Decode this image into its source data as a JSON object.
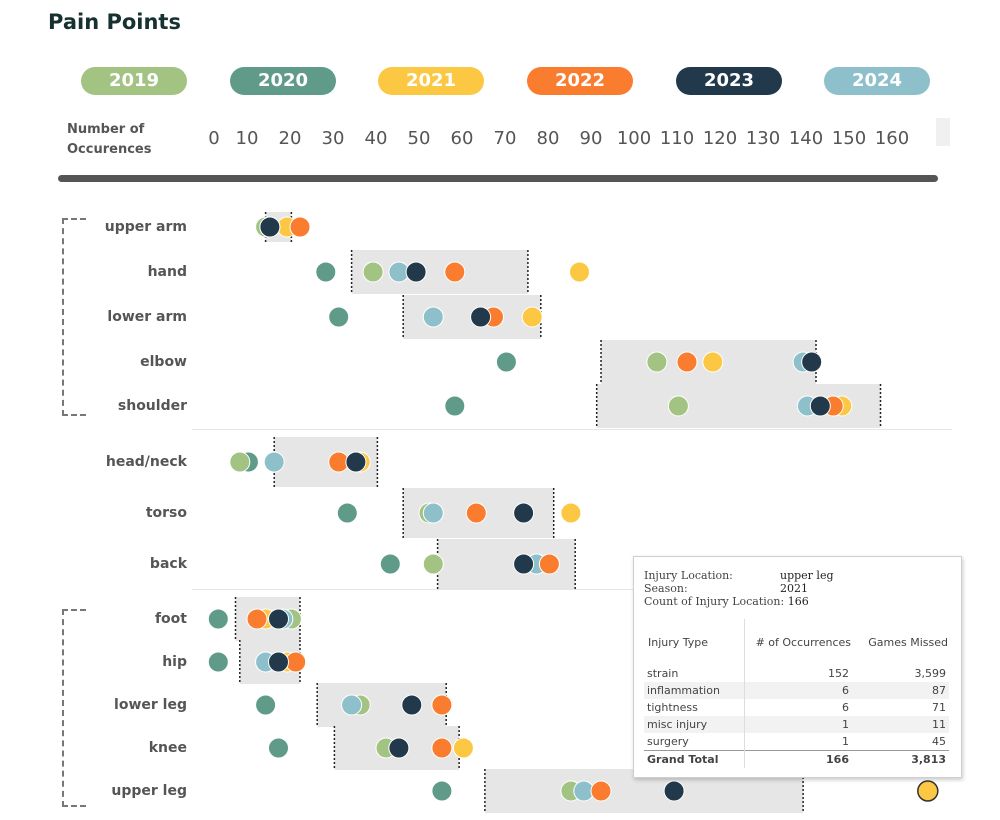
{
  "title": "Pain Points",
  "seasons": [
    {
      "label": "2019",
      "color": "#a2c382"
    },
    {
      "label": "2020",
      "color": "#5f9b88"
    },
    {
      "label": "2021",
      "color": "#fcc844"
    },
    {
      "label": "2022",
      "color": "#fa7c2f"
    },
    {
      "label": "2023",
      "color": "#22384b"
    },
    {
      "label": "2024",
      "color": "#8ec0cb"
    }
  ],
  "axis": {
    "label_line1": "Number of",
    "label_line2": "Occurences",
    "ticks": [
      "0",
      "10",
      "20",
      "30",
      "40",
      "50",
      "60",
      "70",
      "80",
      "90",
      "100",
      "110",
      "120",
      "130",
      "140",
      "150",
      "160"
    ]
  },
  "chart_data": {
    "type": "scatter",
    "title": "Pain Points",
    "xlabel": "Number of Occurences",
    "xlim": [
      0,
      160
    ],
    "categories": [
      "upper arm",
      "hand",
      "lower arm",
      "elbow",
      "shoulder",
      "head/neck",
      "torso",
      "back",
      "foot",
      "hip",
      "lower leg",
      "knee",
      "upper leg"
    ],
    "series": [
      {
        "name": "2019",
        "values": [
          12,
          37,
          51,
          103,
          108,
          6,
          50,
          51,
          18,
          12,
          34,
          40,
          83
        ]
      },
      {
        "name": "2020",
        "values": [
          13,
          26,
          29,
          68,
          56,
          8,
          31,
          41,
          1,
          1,
          12,
          15,
          53
        ]
      },
      {
        "name": "2021",
        "values": [
          17,
          85,
          74,
          116,
          146,
          34,
          83,
          75,
          12,
          17,
          53,
          58,
          166
        ]
      },
      {
        "name": "2022",
        "values": [
          20,
          56,
          65,
          110,
          144,
          29,
          61,
          78,
          10,
          19,
          53,
          53,
          90
        ]
      },
      {
        "name": "2023",
        "values": [
          13,
          47,
          62,
          139,
          141,
          33,
          72,
          72,
          15,
          15,
          46,
          43,
          107
        ]
      },
      {
        "name": "2024",
        "values": [
          13,
          43,
          51,
          137,
          138,
          14,
          51,
          75,
          16,
          12,
          32,
          43,
          86
        ]
      }
    ],
    "ranges": [
      {
        "min": 12,
        "max": 18
      },
      {
        "min": 32,
        "max": 73
      },
      {
        "min": 44,
        "max": 76
      },
      {
        "min": 90,
        "max": 140
      },
      {
        "min": 89,
        "max": 155
      },
      {
        "min": 14,
        "max": 38
      },
      {
        "min": 44,
        "max": 79
      },
      {
        "min": 52,
        "max": 84
      },
      {
        "min": 5,
        "max": 20
      },
      {
        "min": 6,
        "max": 20
      },
      {
        "min": 24,
        "max": 54
      },
      {
        "min": 28,
        "max": 57
      },
      {
        "min": 63,
        "max": 137
      }
    ],
    "groups": [
      [
        "upper arm",
        "hand",
        "lower arm",
        "elbow",
        "shoulder"
      ],
      [
        "head/neck",
        "torso",
        "back"
      ],
      [
        "foot",
        "hip",
        "lower leg",
        "knee",
        "upper leg"
      ]
    ]
  },
  "tooltip": {
    "location_label": "Injury Location:",
    "location_value": "upper leg",
    "season_label": "Season:",
    "season_value": "2021",
    "count_label": "Count of Injury Location:",
    "count_value": "166",
    "headers": [
      "Injury Type",
      "# of Occurrences",
      "Games Missed"
    ],
    "rows": [
      {
        "type": "strain",
        "occurrences": "152",
        "missed": "3,599"
      },
      {
        "type": "inflammation",
        "occurrences": "6",
        "missed": "87"
      },
      {
        "type": "tightness",
        "occurrences": "6",
        "missed": "71"
      },
      {
        "type": "misc injury",
        "occurrences": "1",
        "missed": "11"
      },
      {
        "type": "surgery",
        "occurrences": "1",
        "missed": "45"
      }
    ],
    "total": {
      "type": "Grand Total",
      "occurrences": "166",
      "missed": "3,813"
    }
  }
}
